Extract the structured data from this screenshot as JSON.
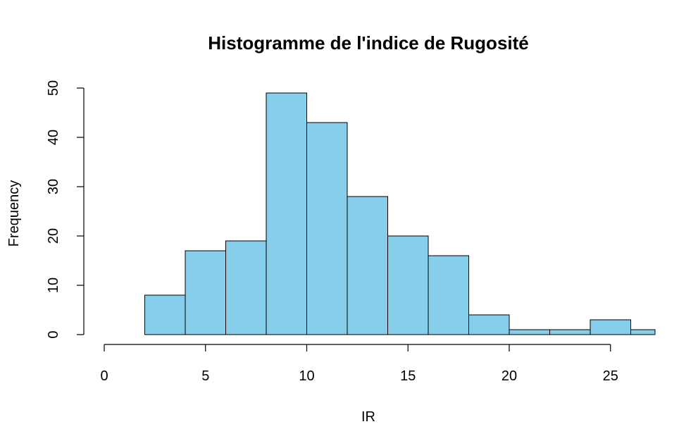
{
  "chart_data": {
    "type": "bar",
    "title": "Histogramme de l'indice de Rugosité",
    "xlabel": "IR",
    "ylabel": "Frequency",
    "bin_width": 2,
    "bins": [
      {
        "from": 2,
        "to": 4,
        "count": 8
      },
      {
        "from": 4,
        "to": 6,
        "count": 17
      },
      {
        "from": 6,
        "to": 8,
        "count": 19
      },
      {
        "from": 8,
        "to": 10,
        "count": 49
      },
      {
        "from": 10,
        "to": 12,
        "count": 43
      },
      {
        "from": 12,
        "to": 14,
        "count": 28
      },
      {
        "from": 14,
        "to": 16,
        "count": 20
      },
      {
        "from": 16,
        "to": 18,
        "count": 16
      },
      {
        "from": 18,
        "to": 20,
        "count": 4
      },
      {
        "from": 20,
        "to": 22,
        "count": 1
      },
      {
        "from": 22,
        "to": 24,
        "count": 1
      },
      {
        "from": 24,
        "to": 26,
        "count": 3
      },
      {
        "from": 26,
        "to": 28,
        "count": 1
      }
    ],
    "xticks": [
      "0",
      "5",
      "10",
      "15",
      "20",
      "25"
    ],
    "yticks": [
      "0",
      "10",
      "20",
      "30",
      "40",
      "50"
    ],
    "xlim": [
      0,
      27.3
    ],
    "ylim": [
      0,
      50
    ],
    "grid": false,
    "bar_color": "#87CEEB",
    "edge_color": "#000000"
  }
}
